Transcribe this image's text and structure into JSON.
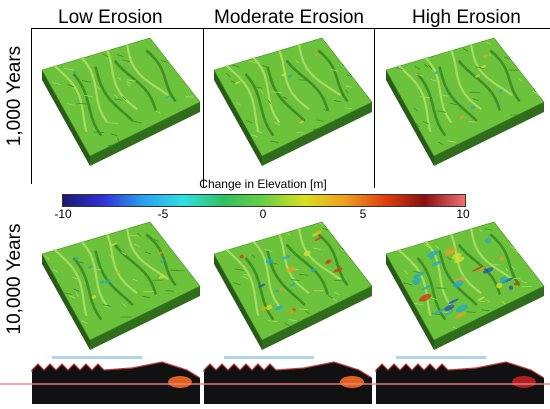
{
  "columns": [
    {
      "label": "Low Erosion",
      "level": 1
    },
    {
      "label": "Moderate Erosion",
      "level": 2
    },
    {
      "label": "High Erosion",
      "level": 3
    }
  ],
  "rows": [
    {
      "label": "1,000 Years"
    },
    {
      "label": "10,000 Years"
    }
  ],
  "colorbar": {
    "title": "Change in Elevation [m]",
    "ticks": [
      "-10",
      "-5",
      "0",
      "5",
      "10"
    ],
    "min": -10,
    "max": 10,
    "colors": [
      "#1a1a6e",
      "#3030d8",
      "#2aa0f0",
      "#30e0e0",
      "#30c060",
      "#6ad040",
      "#d8e020",
      "#f0a020",
      "#e04010",
      "#8a1010",
      "#f07070"
    ]
  },
  "colors": {
    "terrain_base": "#6cc23a",
    "terrain_light": "#a6dc62",
    "terrain_dark": "#3f8f24",
    "terrain_side": "#2f6d1c",
    "erosion": "#20a8d0",
    "deposition": "#e8a020",
    "strong_erosion": "#2050c0",
    "strong_deposition": "#e03010"
  }
}
